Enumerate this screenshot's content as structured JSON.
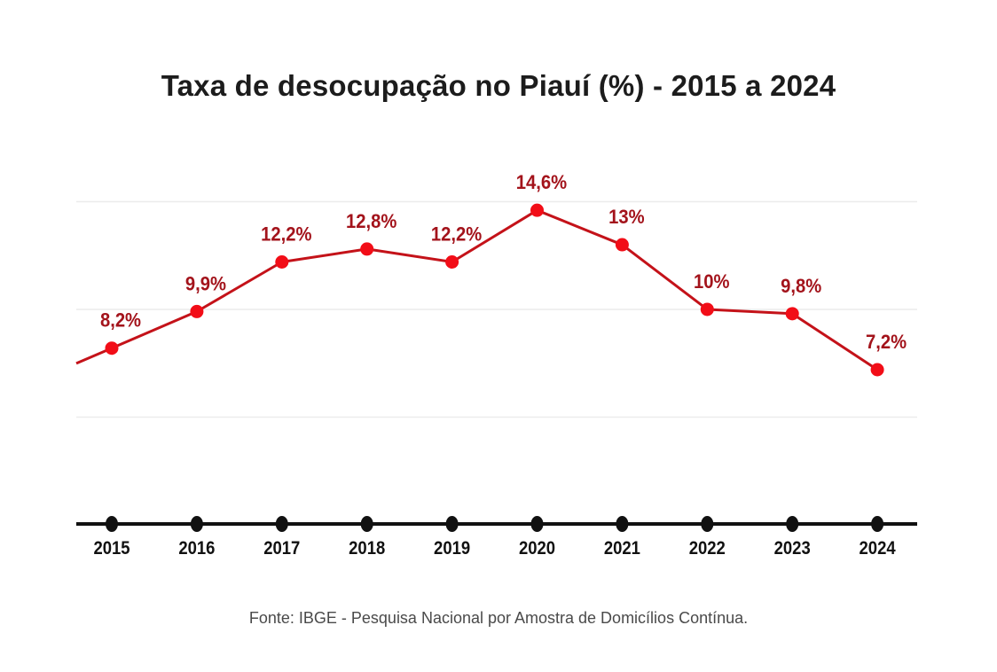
{
  "chart_data": {
    "type": "line",
    "title": "Taxa de desocupação no Piauí (%) - 2015 a 2024",
    "xlabel": "",
    "ylabel": "",
    "categories": [
      "2015",
      "2016",
      "2017",
      "2018",
      "2019",
      "2020",
      "2021",
      "2022",
      "2023",
      "2024"
    ],
    "series": [
      {
        "name": "Taxa de desocupação (%)",
        "values": [
          8.2,
          9.9,
          12.2,
          12.8,
          12.2,
          14.6,
          13.0,
          10.0,
          9.8,
          7.2
        ],
        "labels": [
          "8,2%",
          "9,9%",
          "12,2%",
          "12,8%",
          "12,2%",
          "14,6%",
          "13%",
          "10%",
          "9,8%",
          "7,2%"
        ],
        "color": "#e0121b"
      }
    ],
    "ylim": [
      0,
      15
    ],
    "gridlines": [
      5,
      10,
      15
    ],
    "grid": true,
    "legend": "none",
    "source": "Fonte: IBGE - Pesquisa Nacional por Amostra de Domicílios Contínua."
  },
  "colors": {
    "line": "#c41219",
    "marker": "#f20d17",
    "label": "#a3131b",
    "axis": "#111111",
    "grid": "#ececec",
    "title": "#1c1c1c"
  }
}
